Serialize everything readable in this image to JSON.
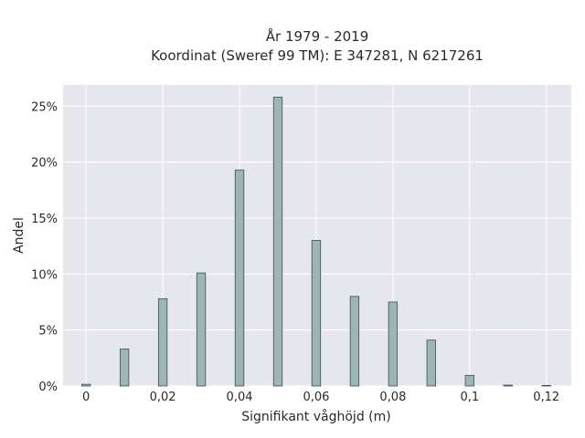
{
  "chart_data": {
    "type": "bar",
    "title_line1": "År 1979 - 2019",
    "title_line2": "Koordinat (Sweref 99 TM): E 347281, N 6217261",
    "xlabel": "Signifikant våghöjd (m)",
    "ylabel": "Andel",
    "x": [
      0,
      0.01,
      0.02,
      0.03,
      0.04,
      0.05,
      0.06,
      0.07,
      0.08,
      0.09,
      0.1,
      0.11,
      0.12
    ],
    "values": [
      0.15,
      3.3,
      7.8,
      10.1,
      19.3,
      25.8,
      13.0,
      8.0,
      7.5,
      4.1,
      0.95,
      0.08,
      0.05
    ],
    "xlim": [
      -0.006,
      0.1265
    ],
    "ylim": [
      0,
      26.9
    ],
    "x_ticks": [
      {
        "value": 0,
        "label": "0"
      },
      {
        "value": 0.02,
        "label": "0,02"
      },
      {
        "value": 0.04,
        "label": "0,04"
      },
      {
        "value": 0.06,
        "label": "0,06"
      },
      {
        "value": 0.08,
        "label": "0,08"
      },
      {
        "value": 0.1,
        "label": "0,1"
      },
      {
        "value": 0.12,
        "label": "0,12"
      }
    ],
    "y_ticks": [
      {
        "value": 0,
        "label": "0%"
      },
      {
        "value": 5,
        "label": "5%"
      },
      {
        "value": 10,
        "label": "10%"
      },
      {
        "value": 15,
        "label": "15%"
      },
      {
        "value": 20,
        "label": "20%"
      },
      {
        "value": 25,
        "label": "25%"
      }
    ],
    "grid": true,
    "colors": {
      "plot_bg": "#e6e6ef",
      "grid": "#ffffff",
      "bar_fill": "#9cb5b5",
      "bar_stroke": "#3f4f4f"
    }
  }
}
